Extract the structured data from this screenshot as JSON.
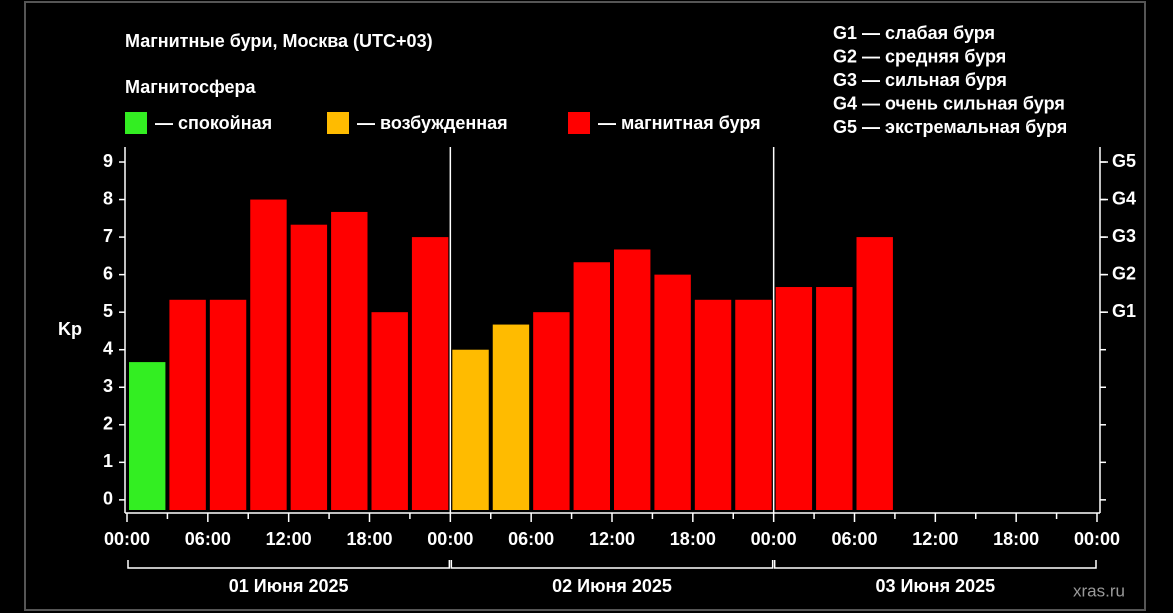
{
  "chart_data": {
    "type": "bar",
    "title": "Магнитные бури, Москва (UTC+03)",
    "legend_title": "Магнитосфера",
    "legend": [
      {
        "label": "— спокойная",
        "color": "#33ee22"
      },
      {
        "label": "— возбужденная",
        "color": "#ffbb00"
      },
      {
        "label": "— магнитная буря",
        "color": "#ff0000"
      }
    ],
    "g_scale": [
      "G1 — слабая буря",
      "G2 — средняя буря",
      "G3 — сильная буря",
      "G4 — очень сильная буря",
      "G5 — экстремальная буря"
    ],
    "ylabel": "Kp",
    "x": [
      0,
      3,
      6,
      9,
      12,
      15,
      18,
      21,
      24,
      27,
      30,
      33,
      36,
      39,
      42,
      45,
      48,
      51,
      54
    ],
    "values": [
      3.67,
      5.33,
      5.33,
      8.0,
      7.33,
      7.67,
      5.0,
      7.0,
      4.0,
      4.67,
      5.0,
      6.33,
      6.67,
      6.0,
      5.33,
      5.33,
      5.67,
      5.67,
      7.0
    ],
    "colors": [
      "#33ee22",
      "#ff0000",
      "#ff0000",
      "#ff0000",
      "#ff0000",
      "#ff0000",
      "#ff0000",
      "#ff0000",
      "#ffbb00",
      "#ffbb00",
      "#ff0000",
      "#ff0000",
      "#ff0000",
      "#ff0000",
      "#ff0000",
      "#ff0000",
      "#ff0000",
      "#ff0000",
      "#ff0000"
    ],
    "bar_width": 3,
    "xlim": [
      0,
      72
    ],
    "xticks": [
      {
        "value": 0,
        "label": "00:00"
      },
      {
        "value": 6,
        "label": "06:00"
      },
      {
        "value": 12,
        "label": "12:00"
      },
      {
        "value": 18,
        "label": "18:00"
      },
      {
        "value": 24,
        "label": "00:00"
      },
      {
        "value": 30,
        "label": "06:00"
      },
      {
        "value": 36,
        "label": "12:00"
      },
      {
        "value": 42,
        "label": "18:00"
      },
      {
        "value": 48,
        "label": "00:00"
      },
      {
        "value": 54,
        "label": "06:00"
      },
      {
        "value": 60,
        "label": "12:00"
      },
      {
        "value": 66,
        "label": "18:00"
      },
      {
        "value": 72,
        "label": "00:00"
      }
    ],
    "xminorticks": [
      3,
      9,
      15,
      21,
      27,
      33,
      39,
      45,
      51,
      57,
      63,
      69
    ],
    "days": [
      {
        "label": "01 Июня 2025",
        "start": 0,
        "end": 24
      },
      {
        "label": "02 Июня 2025",
        "start": 24,
        "end": 48
      },
      {
        "label": "03 Июня 2025",
        "start": 48,
        "end": 72
      }
    ],
    "ylim": [
      -0.27,
      9.4
    ],
    "yticks": [
      0,
      1,
      2,
      3,
      4,
      5,
      6,
      7,
      8,
      9
    ],
    "y2lim": [
      -0.27,
      9.4
    ],
    "y2ticks": [
      {
        "value": 5,
        "label": "G1"
      },
      {
        "value": 6,
        "label": "G2"
      },
      {
        "value": 7,
        "label": "G3"
      },
      {
        "value": 8,
        "label": "G4"
      },
      {
        "value": 9,
        "label": "G5"
      }
    ],
    "watermark": "xras.ru"
  }
}
